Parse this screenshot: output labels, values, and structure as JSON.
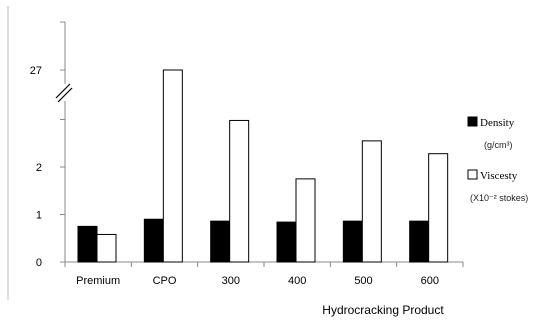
{
  "chart_data": {
    "type": "bar",
    "title": "",
    "xlabel": "Hydrocracking Product",
    "ylabel": "",
    "categories": [
      "Premium",
      "CPO",
      "300",
      "400",
      "500",
      "600"
    ],
    "series": [
      {
        "name": "Density",
        "unit": "(g/cm³)",
        "color": "#000000",
        "values": [
          0.75,
          0.9,
          0.86,
          0.84,
          0.86,
          0.86
        ]
      },
      {
        "name": "Viscesty",
        "unit": "(X10⁻² stokes)",
        "color": "#ffffff",
        "values": [
          0.58,
          27,
          2.98,
          1.75,
          2.55,
          2.28
        ]
      }
    ],
    "y_ticks": [
      "0",
      "1",
      "2",
      "",
      "27"
    ],
    "axis_break": true,
    "legend_position": "right",
    "grid": false
  },
  "colors": {
    "bar_outline": "#000000",
    "axis": "#888888"
  }
}
